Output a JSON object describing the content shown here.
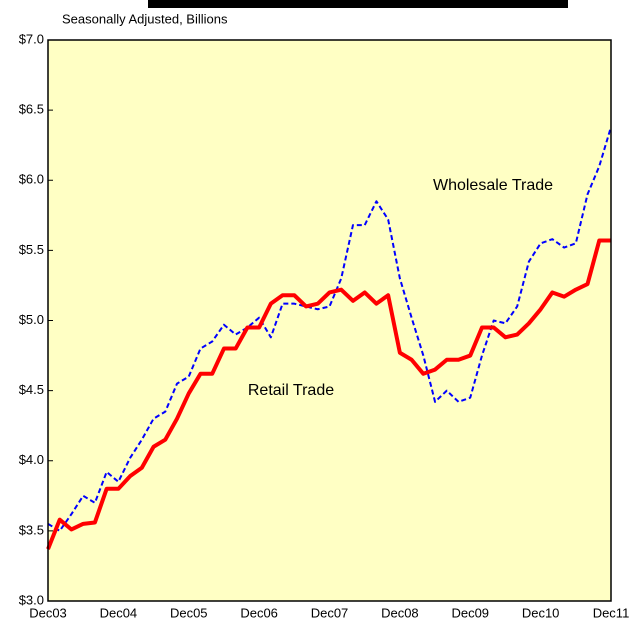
{
  "chart_data": {
    "type": "line",
    "subtitle": "Seasonally Adjusted, Billions",
    "categories": [
      "Dec03",
      null,
      null,
      null,
      null,
      null,
      "Dec04",
      null,
      null,
      null,
      null,
      null,
      "Dec05",
      null,
      null,
      null,
      null,
      null,
      "Dec06",
      null,
      null,
      null,
      null,
      null,
      "Dec07",
      null,
      null,
      null,
      null,
      null,
      "Dec08",
      null,
      null,
      null,
      null,
      null,
      "Dec09",
      null,
      null,
      null,
      null,
      null,
      "Dec10",
      null,
      null,
      null,
      null,
      null,
      "Dec11"
    ],
    "series": [
      {
        "name": "Wholesale Trade",
        "color": "#0000ff",
        "dashed": true,
        "values": [
          3.55,
          3.5,
          3.62,
          3.75,
          3.7,
          3.92,
          3.85,
          4.02,
          4.15,
          4.3,
          4.35,
          4.55,
          4.6,
          4.8,
          4.85,
          4.97,
          4.9,
          4.95,
          5.02,
          4.88,
          5.12,
          5.12,
          5.1,
          5.08,
          5.1,
          5.3,
          5.68,
          5.68,
          5.85,
          5.72,
          5.3,
          5.02,
          4.75,
          4.42,
          4.5,
          4.42,
          4.45,
          4.75,
          5.0,
          4.98,
          5.1,
          5.42,
          5.55,
          5.58,
          5.52,
          5.55,
          5.9,
          6.1,
          6.38
        ]
      },
      {
        "name": "Retail Trade",
        "color": "#ff0000",
        "dashed": false,
        "values": [
          3.37,
          3.58,
          3.51,
          3.55,
          3.56,
          3.8,
          3.8,
          3.89,
          3.95,
          4.1,
          4.15,
          4.3,
          4.48,
          4.62,
          4.62,
          4.8,
          4.8,
          4.95,
          4.95,
          5.12,
          5.18,
          5.18,
          5.1,
          5.12,
          5.2,
          5.22,
          5.14,
          5.2,
          5.12,
          5.18,
          4.77,
          4.72,
          4.62,
          4.65,
          4.72,
          4.72,
          4.75,
          4.95,
          4.95,
          4.88,
          4.9,
          4.98,
          5.08,
          5.2,
          5.17,
          5.22,
          5.26,
          5.57,
          5.57
        ]
      }
    ],
    "ylim": [
      3.0,
      7.0
    ],
    "yticks": [
      {
        "value": 3.0,
        "label": "$3.0"
      },
      {
        "value": 3.5,
        "label": "$3.5"
      },
      {
        "value": 4.0,
        "label": "$4.0"
      },
      {
        "value": 4.5,
        "label": "$4.5"
      },
      {
        "value": 5.0,
        "label": "$5.0"
      },
      {
        "value": 5.5,
        "label": "$5.5"
      },
      {
        "value": 6.0,
        "label": "$6.0"
      },
      {
        "value": 6.5,
        "label": "$6.5"
      },
      {
        "value": 7.0,
        "label": "$7.0"
      }
    ],
    "plot_background": "#ffffc4"
  }
}
